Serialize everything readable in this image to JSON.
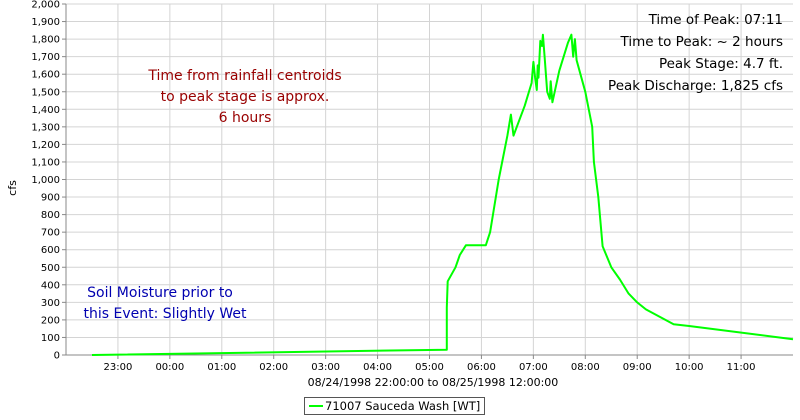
{
  "chart_data": {
    "type": "line",
    "ylabel": "cfs",
    "xlabel": "08/24/1998 22:00:00 to 08/25/1998 12:00:00",
    "ylim": [
      0,
      2000
    ],
    "ytick_step": 100,
    "xlim": [
      "1998-08-24 22:00",
      "1998-08-25 12:00"
    ],
    "x_tick_labels": [
      "23:00",
      "00:00",
      "01:00",
      "02:00",
      "03:00",
      "04:00",
      "05:00",
      "06:00",
      "07:00",
      "08:00",
      "09:00",
      "10:00",
      "11:00"
    ],
    "grid": true,
    "series": [
      {
        "name": "71007 Sauceda Wash [WT]",
        "color": "#00ff00",
        "points": [
          [
            "1998-08-24 22:30",
            0
          ],
          [
            "1998-08-25 05:20",
            30
          ],
          [
            "1998-08-25 05:20",
            270
          ],
          [
            "1998-08-25 05:21",
            420
          ],
          [
            "1998-08-25 05:30",
            500
          ],
          [
            "1998-08-25 05:35",
            570
          ],
          [
            "1998-08-25 05:42",
            625
          ],
          [
            "1998-08-25 05:55",
            625
          ],
          [
            "1998-08-25 06:05",
            625
          ],
          [
            "1998-08-25 06:10",
            700
          ],
          [
            "1998-08-25 06:20",
            1000
          ],
          [
            "1998-08-25 06:30",
            1250
          ],
          [
            "1998-08-25 06:34",
            1370
          ],
          [
            "1998-08-25 06:37",
            1250
          ],
          [
            "1998-08-25 06:50",
            1420
          ],
          [
            "1998-08-25 06:58",
            1550
          ],
          [
            "1998-08-25 07:00",
            1670
          ],
          [
            "1998-08-25 07:02",
            1580
          ],
          [
            "1998-08-25 07:04",
            1510
          ],
          [
            "1998-08-25 07:05",
            1650
          ],
          [
            "1998-08-25 07:06",
            1580
          ],
          [
            "1998-08-25 07:08",
            1790
          ],
          [
            "1998-08-25 07:10",
            1760
          ],
          [
            "1998-08-25 07:11",
            1825
          ],
          [
            "1998-08-25 07:13",
            1700
          ],
          [
            "1998-08-25 07:16",
            1500
          ],
          [
            "1998-08-25 07:19",
            1460
          ],
          [
            "1998-08-25 07:20",
            1560
          ],
          [
            "1998-08-25 07:22",
            1440
          ],
          [
            "1998-08-25 07:30",
            1620
          ],
          [
            "1998-08-25 07:40",
            1780
          ],
          [
            "1998-08-25 07:44",
            1825
          ],
          [
            "1998-08-25 07:46",
            1700
          ],
          [
            "1998-08-25 07:48",
            1800
          ],
          [
            "1998-08-25 07:50",
            1680
          ],
          [
            "1998-08-25 08:00",
            1500
          ],
          [
            "1998-08-25 08:08",
            1300
          ],
          [
            "1998-08-25 08:10",
            1100
          ],
          [
            "1998-08-25 08:15",
            900
          ],
          [
            "1998-08-25 08:20",
            620
          ],
          [
            "1998-08-25 08:30",
            500
          ],
          [
            "1998-08-25 08:40",
            430
          ],
          [
            "1998-08-25 08:50",
            350
          ],
          [
            "1998-08-25 09:00",
            300
          ],
          [
            "1998-08-25 09:10",
            260
          ],
          [
            "1998-08-25 09:42",
            175
          ],
          [
            "1998-08-25 10:00",
            165
          ],
          [
            "1998-08-25 12:00",
            90
          ]
        ]
      }
    ],
    "annotations": {
      "peak_info": [
        "Time of Peak: 07:11",
        "Time to Peak: ~ 2 hours",
        "Peak Stage: 4.7 ft.",
        "Peak Discharge: 1,825 cfs"
      ],
      "centroid_note": [
        "Time from rainfall centroids",
        "to peak stage is approx.",
        "6 hours"
      ],
      "soil_note": [
        "Soil Moisture prior to",
        "this Event: Slightly Wet"
      ]
    },
    "legend_placement": "bottom"
  },
  "colors": {
    "line": "#00ff00",
    "grid": "#d4d4d4",
    "centroid_note": "#990000",
    "soil_note": "#0000b0"
  }
}
